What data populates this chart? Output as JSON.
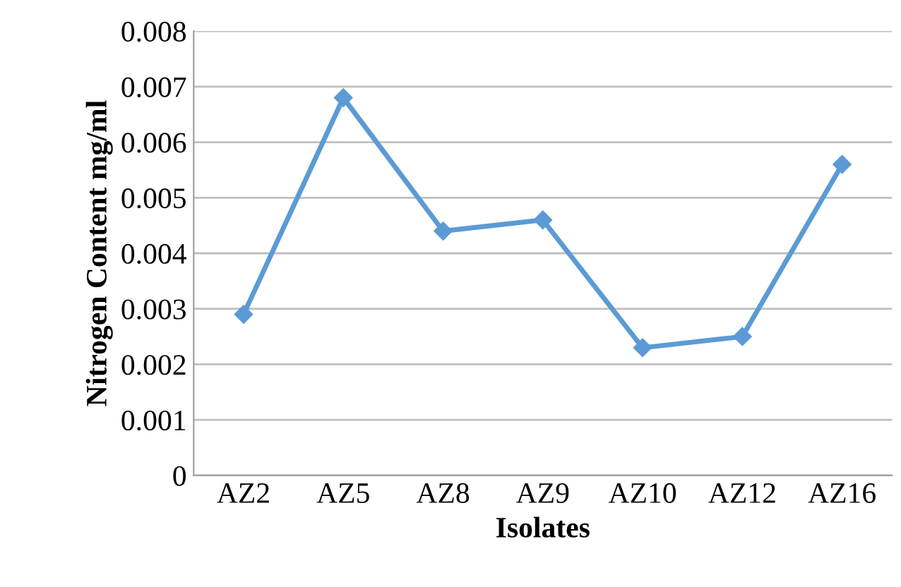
{
  "chart_data": {
    "type": "line",
    "xlabel": "Isolates",
    "ylabel": "Nitrogen Content mg/ml",
    "categories": [
      "AZ2",
      "AZ5",
      "AZ8",
      "AZ9",
      "AZ10",
      "AZ12",
      "AZ16"
    ],
    "series": [
      {
        "color": "#5b9bd5",
        "values": [
          0.0029,
          0.0068,
          0.0044,
          0.0046,
          0.0023,
          0.0025,
          0.0056
        ]
      }
    ],
    "ylim": [
      0,
      0.008
    ],
    "yticks": [
      0,
      0.001,
      0.002,
      0.003,
      0.004,
      0.005,
      0.006,
      0.007,
      0.008
    ],
    "grid": "y",
    "legend": false,
    "marker": "diamond",
    "line_style": "solid"
  }
}
